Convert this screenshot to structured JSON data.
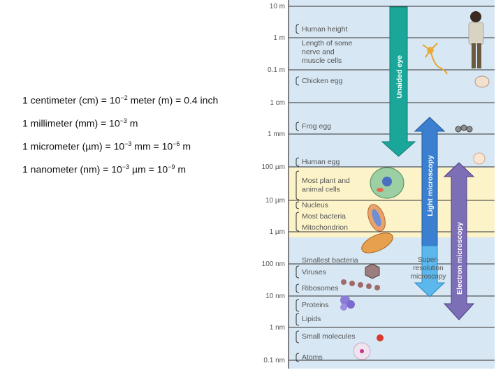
{
  "definitions": [
    {
      "pre": "1 centimeter (cm) = 10",
      "sup1": "−2",
      "mid": " meter (m) = 0.4 inch",
      "sup2": "",
      "post": ""
    },
    {
      "pre": "1 millimeter (mm) = 10",
      "sup1": "−3",
      "mid": " m",
      "sup2": "",
      "post": ""
    },
    {
      "pre": "1 micrometer (µm) = 10",
      "sup1": "−3",
      "mid": " mm = 10",
      "sup2": "−6",
      "post": " m"
    },
    {
      "pre": "1 nanometer (nm) = 10",
      "sup1": "−3",
      "mid": " µm = 10",
      "sup2": "−9",
      "post": " m"
    }
  ],
  "scale": {
    "ticks": [
      "10 m",
      "1 m",
      "0.1 m",
      "1 cm",
      "1 mm",
      "100 µm",
      "10 µm",
      "1 µm",
      "100 nm",
      "10 nm",
      "1 nm",
      "0.1 nm"
    ],
    "items": [
      "Human height",
      "Length of some\nnerve and\nmuscle cells",
      "Chicken egg",
      "Frog egg",
      "Human egg",
      "Most plant and\nanimal cells",
      "Nucleus",
      "Most bacteria",
      "Mitochondrion",
      "Smallest bacteria",
      "Viruses",
      "Ribosomes",
      "Proteins",
      "Lipids",
      "Small molecules",
      "Atoms"
    ]
  },
  "ranges": {
    "unaided_eye": "Unaided eye",
    "light_microscopy": "Light microscopy",
    "electron_microscopy": "Electron microscopy",
    "super_resolution": "Super-\nresolution\nmicroscopy"
  },
  "colors": {
    "background": "#d7e7f3",
    "cell_band": "#fcf3c8",
    "unaided_eye": "#1aa79a",
    "light_microscopy": "#3a7fd0",
    "super_resolution": "#5bb7ec",
    "electron_microscopy": "#7d6fb6"
  },
  "icons": [
    "human-figure-icon",
    "nerve-cell-icon",
    "chicken-egg-icon",
    "frog-eggs-icon",
    "human-egg-icon",
    "plant-animal-cell-icon",
    "bacterium-icon",
    "mitochondrion-icon",
    "virus-icon",
    "ribosomes-icon",
    "protein-icon",
    "small-molecule-icon",
    "atom-icon"
  ]
}
